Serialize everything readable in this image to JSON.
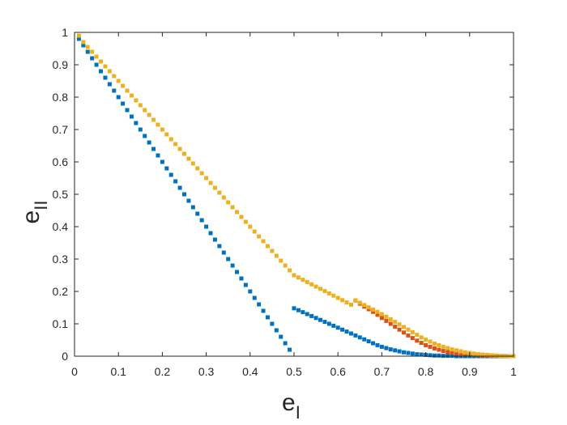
{
  "chart_data": {
    "type": "scatter",
    "title": "",
    "xlabel": {
      "base": "e",
      "subscript": "I"
    },
    "ylabel": {
      "base": "e",
      "subscript": "II"
    },
    "xlim": [
      0,
      1
    ],
    "ylim": [
      0,
      1
    ],
    "xticks": [
      "0",
      "0.1",
      "0.2",
      "0.3",
      "0.4",
      "0.5",
      "0.6",
      "0.7",
      "0.8",
      "0.9",
      "1"
    ],
    "yticks": [
      "0",
      "0.1",
      "0.2",
      "0.3",
      "0.4",
      "0.5",
      "0.6",
      "0.7",
      "0.8",
      "0.9",
      "1"
    ],
    "grid": false,
    "series": [
      {
        "color": "#0072BD",
        "points": [
          [
            0.01,
            0.98
          ],
          [
            0.02,
            0.96
          ],
          [
            0.03,
            0.94
          ],
          [
            0.04,
            0.92
          ],
          [
            0.05,
            0.9
          ],
          [
            0.06,
            0.88
          ],
          [
            0.07,
            0.86
          ],
          [
            0.08,
            0.84
          ],
          [
            0.09,
            0.82
          ],
          [
            0.1,
            0.8
          ],
          [
            0.11,
            0.78
          ],
          [
            0.12,
            0.76
          ],
          [
            0.13,
            0.74
          ],
          [
            0.14,
            0.72
          ],
          [
            0.15,
            0.7
          ],
          [
            0.16,
            0.68
          ],
          [
            0.17,
            0.66
          ],
          [
            0.18,
            0.64
          ],
          [
            0.19,
            0.62
          ],
          [
            0.2,
            0.6
          ],
          [
            0.21,
            0.58
          ],
          [
            0.22,
            0.56
          ],
          [
            0.23,
            0.54
          ],
          [
            0.24,
            0.52
          ],
          [
            0.25,
            0.5
          ],
          [
            0.26,
            0.48
          ],
          [
            0.27,
            0.46
          ],
          [
            0.28,
            0.44
          ],
          [
            0.29,
            0.42
          ],
          [
            0.3,
            0.4
          ],
          [
            0.31,
            0.38
          ],
          [
            0.32,
            0.36
          ],
          [
            0.33,
            0.34
          ],
          [
            0.34,
            0.32
          ],
          [
            0.35,
            0.3
          ],
          [
            0.36,
            0.28
          ],
          [
            0.37,
            0.26
          ],
          [
            0.38,
            0.24
          ],
          [
            0.39,
            0.22
          ],
          [
            0.4,
            0.2
          ],
          [
            0.41,
            0.18
          ],
          [
            0.42,
            0.16
          ],
          [
            0.43,
            0.14
          ],
          [
            0.44,
            0.12
          ],
          [
            0.45,
            0.1
          ],
          [
            0.46,
            0.08
          ],
          [
            0.47,
            0.06
          ],
          [
            0.48,
            0.04
          ],
          [
            0.49,
            0.02
          ],
          [
            0.5,
            0.148
          ],
          [
            0.51,
            0.142
          ],
          [
            0.52,
            0.136
          ],
          [
            0.53,
            0.13
          ],
          [
            0.54,
            0.124
          ],
          [
            0.55,
            0.118
          ],
          [
            0.56,
            0.112
          ],
          [
            0.57,
            0.106
          ],
          [
            0.58,
            0.1
          ],
          [
            0.59,
            0.094
          ],
          [
            0.6,
            0.088
          ],
          [
            0.61,
            0.082
          ],
          [
            0.62,
            0.076
          ],
          [
            0.63,
            0.07
          ],
          [
            0.64,
            0.064
          ],
          [
            0.65,
            0.058
          ],
          [
            0.66,
            0.052
          ],
          [
            0.67,
            0.046
          ],
          [
            0.68,
            0.04
          ],
          [
            0.69,
            0.034
          ],
          [
            0.7,
            0.029
          ],
          [
            0.71,
            0.025
          ],
          [
            0.72,
            0.021
          ],
          [
            0.73,
            0.018
          ],
          [
            0.74,
            0.015
          ],
          [
            0.75,
            0.012
          ],
          [
            0.76,
            0.01
          ],
          [
            0.77,
            0.008
          ],
          [
            0.78,
            0.006
          ],
          [
            0.79,
            0.005
          ],
          [
            0.8,
            0.004
          ],
          [
            0.81,
            0.003
          ],
          [
            0.82,
            0.002
          ],
          [
            0.83,
            0.002
          ],
          [
            0.84,
            0.001
          ],
          [
            0.85,
            0.001
          ],
          [
            0.86,
            0.001
          ],
          [
            0.87,
            0.0
          ],
          [
            0.88,
            0.0
          ],
          [
            0.89,
            0.0
          ],
          [
            0.9,
            0.0
          ],
          [
            0.91,
            0.0
          ],
          [
            0.92,
            0.0
          ],
          [
            0.93,
            0.0
          ],
          [
            0.94,
            0.0
          ],
          [
            0.95,
            0.0
          ],
          [
            0.96,
            0.0
          ],
          [
            0.97,
            0.0
          ],
          [
            0.98,
            0.0
          ],
          [
            0.99,
            0.0
          ],
          [
            1.0,
            0.0
          ]
        ]
      },
      {
        "color": "#D95319",
        "points": [
          [
            0.64,
            0.172
          ],
          [
            0.65,
            0.162
          ],
          [
            0.66,
            0.153
          ],
          [
            0.67,
            0.145
          ],
          [
            0.68,
            0.137
          ],
          [
            0.69,
            0.128
          ],
          [
            0.7,
            0.118
          ],
          [
            0.71,
            0.109
          ],
          [
            0.72,
            0.1
          ],
          [
            0.73,
            0.091
          ],
          [
            0.74,
            0.082
          ],
          [
            0.75,
            0.073
          ],
          [
            0.76,
            0.064
          ],
          [
            0.77,
            0.056
          ],
          [
            0.78,
            0.048
          ],
          [
            0.79,
            0.041
          ],
          [
            0.8,
            0.034
          ],
          [
            0.81,
            0.029
          ],
          [
            0.82,
            0.024
          ],
          [
            0.83,
            0.02
          ],
          [
            0.84,
            0.016
          ],
          [
            0.85,
            0.013
          ],
          [
            0.86,
            0.011
          ],
          [
            0.87,
            0.009
          ],
          [
            0.88,
            0.007
          ],
          [
            0.89,
            0.006
          ],
          [
            0.9,
            0.005
          ],
          [
            0.91,
            0.004
          ],
          [
            0.92,
            0.003
          ],
          [
            0.93,
            0.002
          ],
          [
            0.94,
            0.002
          ],
          [
            0.95,
            0.001
          ],
          [
            0.96,
            0.001
          ],
          [
            0.97,
            0.0
          ],
          [
            0.98,
            0.0
          ],
          [
            0.99,
            0.0
          ],
          [
            1.0,
            0.0
          ]
        ]
      },
      {
        "color": "#EDB120",
        "points": [
          [
            0.01,
            0.99
          ],
          [
            0.02,
            0.97
          ],
          [
            0.03,
            0.955
          ],
          [
            0.04,
            0.94
          ],
          [
            0.05,
            0.925
          ],
          [
            0.06,
            0.91
          ],
          [
            0.07,
            0.895
          ],
          [
            0.08,
            0.88
          ],
          [
            0.09,
            0.865
          ],
          [
            0.1,
            0.85
          ],
          [
            0.11,
            0.835
          ],
          [
            0.12,
            0.82
          ],
          [
            0.13,
            0.805
          ],
          [
            0.14,
            0.79
          ],
          [
            0.15,
            0.775
          ],
          [
            0.16,
            0.76
          ],
          [
            0.17,
            0.745
          ],
          [
            0.18,
            0.73
          ],
          [
            0.19,
            0.715
          ],
          [
            0.2,
            0.7
          ],
          [
            0.21,
            0.685
          ],
          [
            0.22,
            0.67
          ],
          [
            0.23,
            0.655
          ],
          [
            0.24,
            0.64
          ],
          [
            0.25,
            0.625
          ],
          [
            0.26,
            0.61
          ],
          [
            0.27,
            0.595
          ],
          [
            0.28,
            0.58
          ],
          [
            0.29,
            0.565
          ],
          [
            0.3,
            0.55
          ],
          [
            0.31,
            0.535
          ],
          [
            0.32,
            0.52
          ],
          [
            0.33,
            0.505
          ],
          [
            0.34,
            0.49
          ],
          [
            0.35,
            0.475
          ],
          [
            0.36,
            0.46
          ],
          [
            0.37,
            0.445
          ],
          [
            0.38,
            0.43
          ],
          [
            0.39,
            0.415
          ],
          [
            0.4,
            0.4
          ],
          [
            0.41,
            0.385
          ],
          [
            0.42,
            0.37
          ],
          [
            0.43,
            0.355
          ],
          [
            0.44,
            0.34
          ],
          [
            0.45,
            0.325
          ],
          [
            0.46,
            0.31
          ],
          [
            0.47,
            0.295
          ],
          [
            0.48,
            0.28
          ],
          [
            0.49,
            0.265
          ],
          [
            0.5,
            0.25
          ],
          [
            0.51,
            0.243
          ],
          [
            0.52,
            0.236
          ],
          [
            0.53,
            0.229
          ],
          [
            0.54,
            0.222
          ],
          [
            0.55,
            0.215
          ],
          [
            0.56,
            0.208
          ],
          [
            0.57,
            0.201
          ],
          [
            0.58,
            0.194
          ],
          [
            0.59,
            0.187
          ],
          [
            0.6,
            0.18
          ],
          [
            0.61,
            0.173
          ],
          [
            0.62,
            0.166
          ],
          [
            0.63,
            0.159
          ],
          [
            0.64,
            0.172
          ],
          [
            0.65,
            0.165
          ],
          [
            0.66,
            0.158
          ],
          [
            0.67,
            0.151
          ],
          [
            0.68,
            0.144
          ],
          [
            0.69,
            0.137
          ],
          [
            0.7,
            0.13
          ],
          [
            0.71,
            0.122
          ],
          [
            0.72,
            0.114
          ],
          [
            0.73,
            0.106
          ],
          [
            0.74,
            0.098
          ],
          [
            0.75,
            0.09
          ],
          [
            0.76,
            0.082
          ],
          [
            0.77,
            0.074
          ],
          [
            0.78,
            0.066
          ],
          [
            0.79,
            0.058
          ],
          [
            0.8,
            0.051
          ],
          [
            0.81,
            0.045
          ],
          [
            0.82,
            0.039
          ],
          [
            0.83,
            0.034
          ],
          [
            0.84,
            0.029
          ],
          [
            0.85,
            0.025
          ],
          [
            0.86,
            0.021
          ],
          [
            0.87,
            0.018
          ],
          [
            0.88,
            0.015
          ],
          [
            0.89,
            0.012
          ],
          [
            0.9,
            0.01
          ],
          [
            0.91,
            0.008
          ],
          [
            0.92,
            0.006
          ],
          [
            0.93,
            0.005
          ],
          [
            0.94,
            0.004
          ],
          [
            0.95,
            0.003
          ],
          [
            0.96,
            0.002
          ],
          [
            0.97,
            0.001
          ],
          [
            0.98,
            0.001
          ],
          [
            0.99,
            0.0
          ],
          [
            1.0,
            0.0
          ]
        ]
      }
    ]
  }
}
